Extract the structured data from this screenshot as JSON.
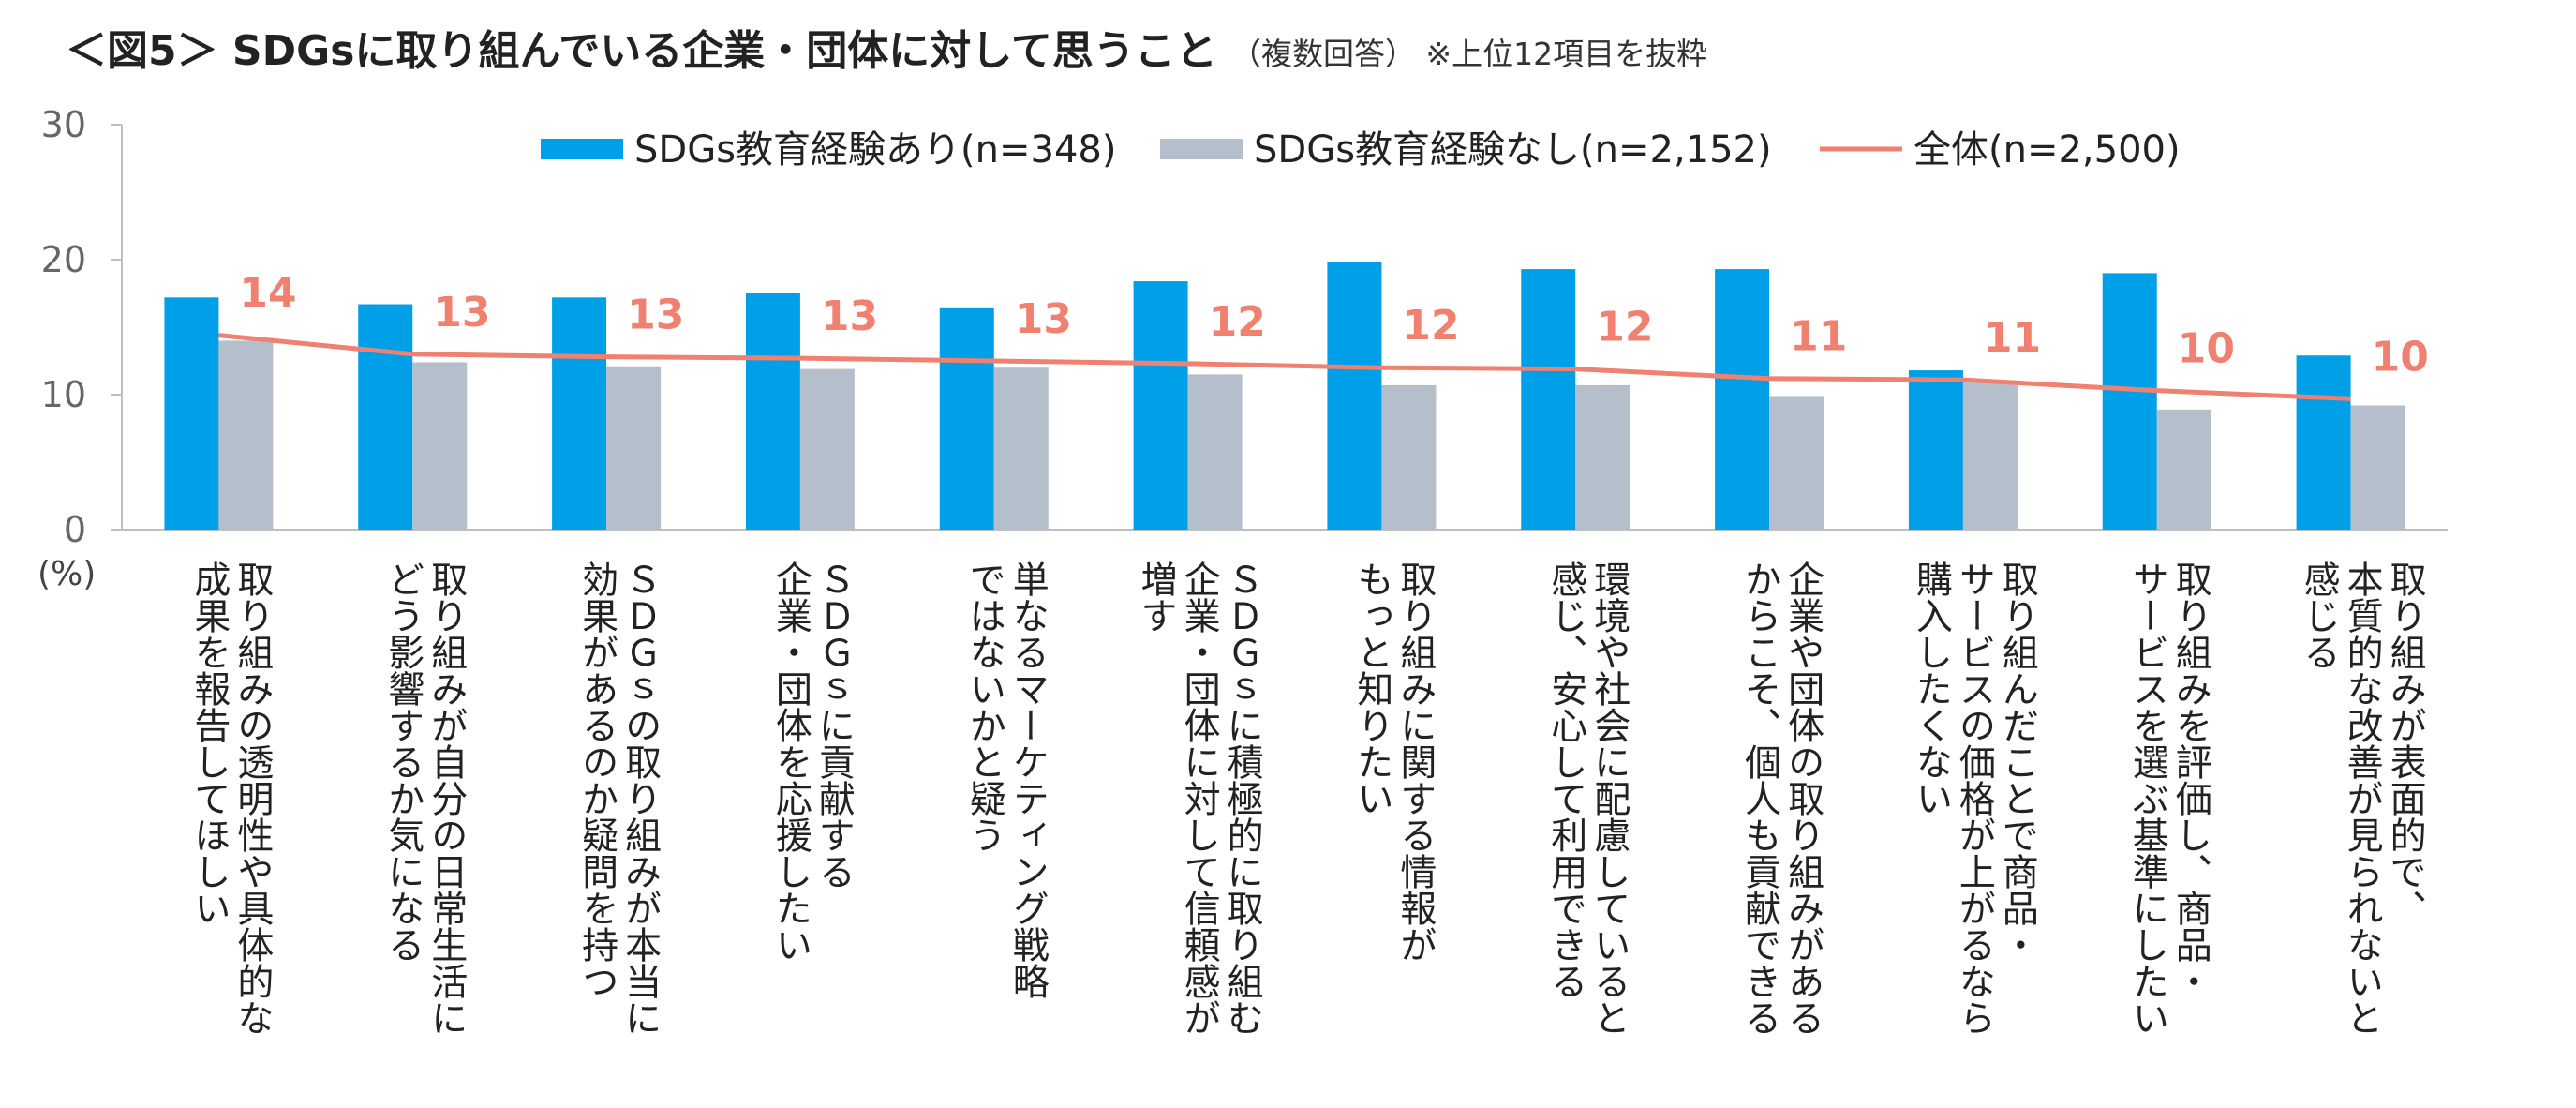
{
  "title": "＜図5＞ SDGsに取り組んでいる企業・団体に対して思うこと",
  "subtitle": "（複数回答） ※上位12項目を抜粋",
  "colors": {
    "with_edu": "#00A0E9",
    "without_edu": "#B4BFCB",
    "total": "#F08070",
    "axis": "#BFBFBF"
  },
  "chart_data": {
    "type": "bar",
    "ylim": [
      0,
      30
    ],
    "yticks": [
      "0",
      "10",
      "20",
      "30"
    ],
    "ylabel": "(%)",
    "grid": false,
    "legend_position": "top",
    "categories": [
      [
        "取り組みの透明性や具体的な",
        "成果を報告してほしい"
      ],
      [
        "取り組みが自分の日常生活に",
        "どう影響するか気になる"
      ],
      [
        "ＳＤＧｓの取り組みが本当に",
        "効果があるのか疑問を持つ"
      ],
      [
        "ＳＤＧｓに貢献する",
        "企業・団体を応援したい"
      ],
      [
        "単なるマーケティング戦略",
        "ではないかと疑う"
      ],
      [
        "ＳＤＧｓに積極的に取り組む",
        "企業・団体に対して信頼感が",
        "増す"
      ],
      [
        "取り組みに関する情報が",
        "もっと知りたい"
      ],
      [
        "環境や社会に配慮していると",
        "感じ、安心して利用できる"
      ],
      [
        "企業や団体の取り組みがある",
        "からこそ、個人も貢献できる"
      ],
      [
        "取り組んだことで商品・",
        "サービスの価格が上がるなら",
        "購入したくない"
      ],
      [
        "取り組みを評価し、商品・",
        "サービスを選ぶ基準にしたい"
      ],
      [
        "取り組みが表面的で、",
        "本質的な改善が見られないと",
        "感じる"
      ]
    ],
    "series": [
      {
        "name": "SDGs教育経験あり(n=348)",
        "type": "bar",
        "values": [
          17.2,
          16.7,
          17.2,
          17.5,
          16.4,
          18.4,
          19.8,
          19.3,
          19.3,
          11.8,
          19.0,
          12.9
        ]
      },
      {
        "name": "SDGs教育経験なし(n=2,152)",
        "type": "bar",
        "values": [
          14.0,
          12.4,
          12.1,
          11.9,
          12.0,
          11.5,
          10.7,
          10.7,
          9.9,
          10.9,
          8.9,
          9.2
        ]
      },
      {
        "name": "全体(n=2,500)",
        "type": "line",
        "values": [
          14.4,
          13.0,
          12.8,
          12.7,
          12.5,
          12.3,
          12.0,
          11.9,
          11.2,
          11.1,
          10.3,
          9.7
        ],
        "labels": [
          "14",
          "13",
          "13",
          "13",
          "13",
          "12",
          "12",
          "12",
          "11",
          "11",
          "10",
          "10"
        ]
      }
    ]
  }
}
